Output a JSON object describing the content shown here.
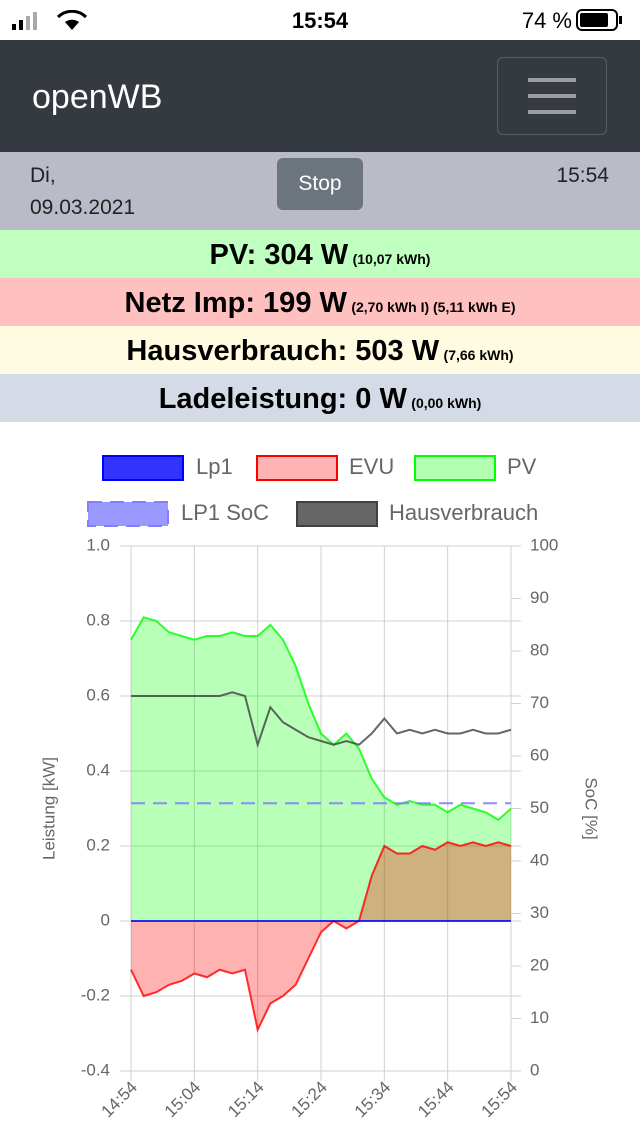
{
  "status_bar": {
    "time": "15:54",
    "battery": "74 %"
  },
  "navbar": {
    "brand": "openWB"
  },
  "info": {
    "day": "Di,",
    "date": "09.03.2021",
    "button": "Stop",
    "time": "15:54"
  },
  "summary": [
    {
      "label": "PV: 304 W",
      "detail": "(10,07 kWh)",
      "color": "#bfffbf"
    },
    {
      "label": "Netz Imp: 199 W",
      "detail": "(2,70 kWh I) (5,11 kWh E)",
      "color": "#ffc0c0"
    },
    {
      "label": "Hausverbrauch: 503 W",
      "detail": "(7,66 kWh)",
      "color": "#fffbe0"
    },
    {
      "label": "Ladeleistung: 0 W",
      "detail": "(0,00 kWh)",
      "color": "#d4dae6"
    }
  ],
  "chart_data": {
    "type": "line",
    "x": [
      "14:54",
      "14:56",
      "14:58",
      "15:00",
      "15:02",
      "15:04",
      "15:06",
      "15:08",
      "15:10",
      "15:12",
      "15:14",
      "15:16",
      "15:18",
      "15:20",
      "15:22",
      "15:24",
      "15:26",
      "15:28",
      "15:30",
      "15:32",
      "15:34",
      "15:36",
      "15:38",
      "15:40",
      "15:42",
      "15:44",
      "15:46",
      "15:48",
      "15:50",
      "15:52",
      "15:54"
    ],
    "xticks": [
      "14:54",
      "15:04",
      "15:14",
      "15:24",
      "15:34",
      "15:44",
      "15:54"
    ],
    "ylabel": "Leistung [kW]",
    "y2label": "SoC [%]",
    "ylim": [
      -0.4,
      1
    ],
    "yticks": [
      {
        "value": 1,
        "label": "1.0"
      },
      0.8,
      0.6,
      0.4,
      0.2,
      0,
      -0.2,
      -0.4
    ],
    "y2lim": [
      0,
      100
    ],
    "y2ticks": [
      0,
      10,
      20,
      30,
      40,
      50,
      60,
      70,
      80,
      90,
      100
    ],
    "grid": true,
    "series": [
      {
        "name": "Lp1",
        "color": "#0000ff",
        "fill": false,
        "values": [
          0,
          0,
          0,
          0,
          0,
          0,
          0,
          0,
          0,
          0,
          0,
          0,
          0,
          0,
          0,
          0,
          0,
          0,
          0,
          0,
          0,
          0,
          0,
          0,
          0,
          0,
          0,
          0,
          0,
          0,
          0
        ]
      },
      {
        "name": "EVU",
        "color": "#ff0000",
        "fill": true,
        "values": [
          -0.13,
          -0.2,
          -0.19,
          -0.17,
          -0.16,
          -0.14,
          -0.15,
          -0.13,
          -0.14,
          -0.13,
          -0.29,
          -0.22,
          -0.2,
          -0.17,
          -0.1,
          -0.03,
          0,
          -0.02,
          0,
          0.12,
          0.2,
          0.18,
          0.18,
          0.2,
          0.19,
          0.21,
          0.2,
          0.21,
          0.2,
          0.21,
          0.2
        ]
      },
      {
        "name": "PV",
        "color": "#00ff00",
        "fill": true,
        "values": [
          0.75,
          0.81,
          0.8,
          0.77,
          0.76,
          0.75,
          0.76,
          0.76,
          0.77,
          0.76,
          0.76,
          0.79,
          0.75,
          0.68,
          0.58,
          0.5,
          0.47,
          0.5,
          0.46,
          0.38,
          0.33,
          0.31,
          0.32,
          0.31,
          0.31,
          0.29,
          0.31,
          0.3,
          0.29,
          0.27,
          0.3
        ]
      },
      {
        "name": "LP1 SoC",
        "color": "#8080ff",
        "fill": false,
        "dash": true,
        "axis": "y2",
        "values": [
          51,
          51,
          51,
          51,
          51,
          51,
          51,
          51,
          51,
          51,
          51,
          51,
          51,
          51,
          51,
          51,
          51,
          51,
          51,
          51,
          51,
          51,
          51,
          51,
          51,
          51,
          51,
          51,
          51,
          51,
          51
        ]
      },
      {
        "name": "Hausverbrauch",
        "color": "#404040",
        "fill": false,
        "values": [
          0.6,
          0.6,
          0.6,
          0.6,
          0.6,
          0.6,
          0.6,
          0.6,
          0.61,
          0.6,
          0.47,
          0.57,
          0.53,
          0.51,
          0.49,
          0.48,
          0.47,
          0.48,
          0.47,
          0.5,
          0.54,
          0.5,
          0.51,
          0.5,
          0.51,
          0.5,
          0.5,
          0.51,
          0.5,
          0.5,
          0.51
        ]
      }
    ]
  }
}
